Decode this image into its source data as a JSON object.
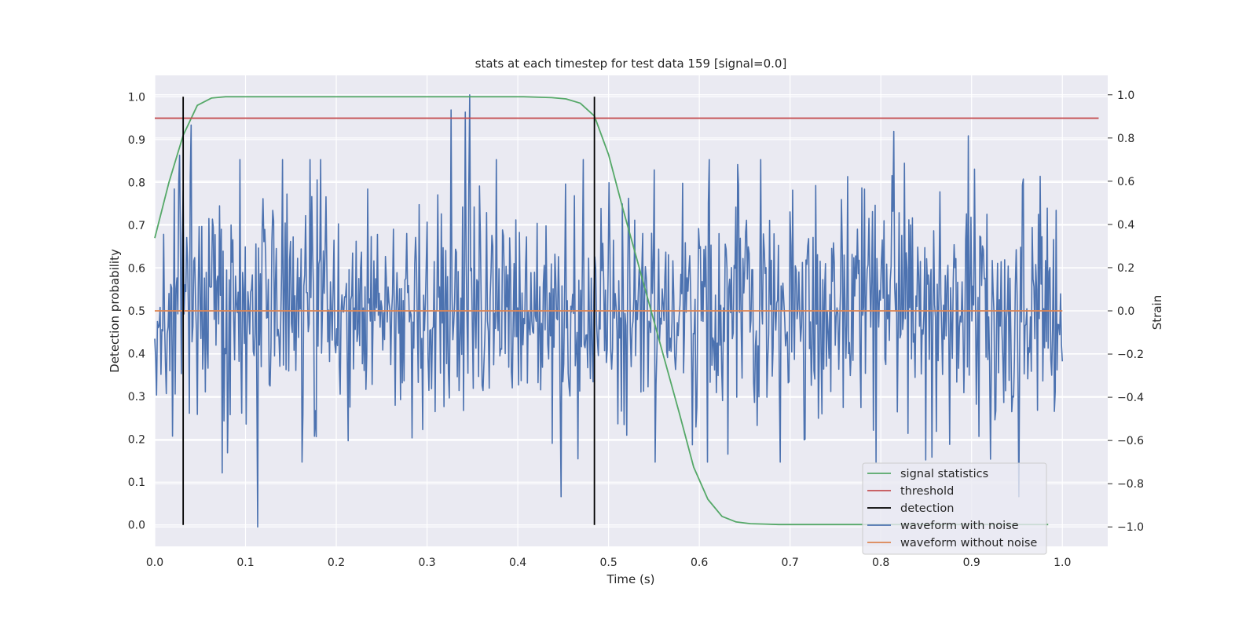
{
  "chart_data": {
    "type": "line",
    "title": "stats at each timestep for test data 159 [signal=0.0]",
    "xlabel": "Time (s)",
    "ylabel_left": "Detection probability",
    "ylabel_right": "Strain",
    "xlim": [
      0.0,
      1.05
    ],
    "ylim_left": [
      -0.05,
      1.05
    ],
    "ylim_right": [
      -1.09,
      1.09
    ],
    "x_ticks": [
      "0.0",
      "0.1",
      "0.2",
      "0.3",
      "0.4",
      "0.5",
      "0.6",
      "0.7",
      "0.8",
      "0.9",
      "1.0"
    ],
    "y_ticks_left": [
      "0.0",
      "0.1",
      "0.2",
      "0.3",
      "0.4",
      "0.5",
      "0.6",
      "0.7",
      "0.8",
      "0.9",
      "1.0"
    ],
    "y_ticks_right": [
      "−1.0",
      "−0.8",
      "−0.6",
      "−0.4",
      "−0.2",
      "0.0",
      "0.2",
      "0.4",
      "0.6",
      "0.8",
      "1.0"
    ],
    "grid": true,
    "legend_position": "lower-right",
    "colors": {
      "background": "#eaeaf2",
      "grid": "#ffffff",
      "signal_statistics": "#55a868",
      "threshold": "#c44e52",
      "detection": "#000000",
      "waveform_with_noise": "#4c72b0",
      "waveform_without_noise": "#dd8452"
    },
    "series": [
      {
        "name": "signal statistics",
        "axis": "left",
        "x": [
          0.0,
          0.0156,
          0.0313,
          0.0469,
          0.0625,
          0.0781,
          0.0938,
          0.1094,
          0.125,
          0.1563,
          0.1875,
          0.2188,
          0.25,
          0.2813,
          0.3125,
          0.3438,
          0.375,
          0.4063,
          0.4375,
          0.4531,
          0.4688,
          0.4844,
          0.5,
          0.5156,
          0.5313,
          0.5469,
          0.5625,
          0.5781,
          0.5938,
          0.6094,
          0.625,
          0.6406,
          0.6563,
          0.6719,
          0.6875,
          0.7031,
          0.75,
          0.8,
          0.85,
          0.9,
          0.95,
          0.9844
        ],
        "y": [
          0.67,
          0.8,
          0.91,
          0.98,
          0.997,
          1.0,
          1.0,
          1.0,
          1.0,
          1.0,
          1.0,
          1.0,
          1.0,
          1.0,
          1.0,
          1.0,
          1.0,
          1.0,
          0.998,
          0.995,
          0.985,
          0.955,
          0.865,
          0.74,
          0.62,
          0.5,
          0.38,
          0.26,
          0.135,
          0.06,
          0.02,
          0.007,
          0.003,
          0.002,
          0.001,
          0.001,
          0.001,
          0.001,
          0.001,
          0.001,
          0.001,
          0.001
        ]
      },
      {
        "name": "threshold",
        "axis": "left",
        "x": [
          0.0,
          1.04
        ],
        "y": [
          0.95,
          0.95
        ]
      },
      {
        "name": "detection",
        "axis": "left",
        "type": "vlines",
        "x": [
          0.0313,
          0.4844
        ],
        "ymin": 0.0,
        "ymax": 1.0
      },
      {
        "name": "waveform with noise",
        "axis": "right",
        "x_start": 0.0,
        "x_end": 1.0,
        "n_points": 1024,
        "seed": 159,
        "std": 0.27,
        "spikes": [
          {
            "x": 0.0195,
            "y": -0.58
          },
          {
            "x": 0.0273,
            "y": 0.72
          },
          {
            "x": 0.04,
            "y": 0.86
          },
          {
            "x": 0.1133,
            "y": -1.0
          },
          {
            "x": 0.0742,
            "y": -0.75
          },
          {
            "x": 0.3262,
            "y": 0.93
          },
          {
            "x": 0.3418,
            "y": 0.92
          },
          {
            "x": 0.3467,
            "y": 1.0
          },
          {
            "x": 0.4473,
            "y": -0.86
          },
          {
            "x": 0.8145,
            "y": 0.83
          },
          {
            "x": 0.8496,
            "y": -0.69
          },
          {
            "x": 0.8965,
            "y": 0.81
          },
          {
            "x": 0.9521,
            "y": -0.86
          },
          {
            "x": 0.957,
            "y": 0.61
          }
        ]
      },
      {
        "name": "waveform without noise",
        "axis": "right",
        "x": [
          0.0,
          1.0
        ],
        "y": [
          0.0,
          0.0
        ]
      }
    ]
  }
}
